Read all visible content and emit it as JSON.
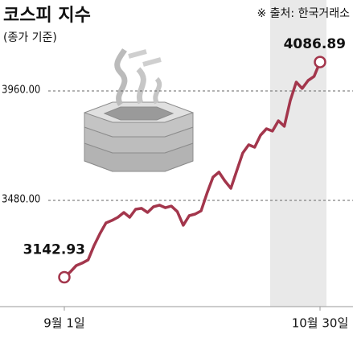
{
  "chart_data": {
    "type": "line",
    "title": "코스피 지수",
    "subtitle": "(종가 기준)",
    "source": "※ 출처: 한국거래소",
    "categories": [
      "9월 1일",
      null,
      null,
      null,
      null,
      null,
      null,
      null,
      null,
      null,
      null,
      null,
      null,
      null,
      null,
      null,
      null,
      null,
      null,
      null,
      null,
      null,
      null,
      null,
      null,
      null,
      null,
      null,
      null,
      null,
      null,
      null,
      null,
      null,
      null,
      null,
      null,
      null,
      null,
      null,
      null,
      null,
      null,
      "10월 30일"
    ],
    "series": [
      {
        "name": "코스피",
        "color": "#a3364c",
        "values": [
          3142.93,
          3166,
          3194,
          3205,
          3219,
          3282,
          3335,
          3381,
          3392,
          3406,
          3427,
          3406,
          3441,
          3445,
          3427,
          3452,
          3459,
          3448,
          3455,
          3431,
          3371,
          3413,
          3420,
          3434,
          3512,
          3582,
          3604,
          3565,
          3533,
          3611,
          3688,
          3724,
          3713,
          3766,
          3794,
          3784,
          3829,
          3805,
          3918,
          3999,
          3971,
          4006,
          4024,
          4086.89
        ]
      }
    ],
    "ylim": [
      3014,
      4359
    ],
    "yticks": [
      {
        "value": 3480,
        "label": "3480.00"
      },
      {
        "value": 3960,
        "label": "3960.00"
      }
    ],
    "grid": true
  }
}
